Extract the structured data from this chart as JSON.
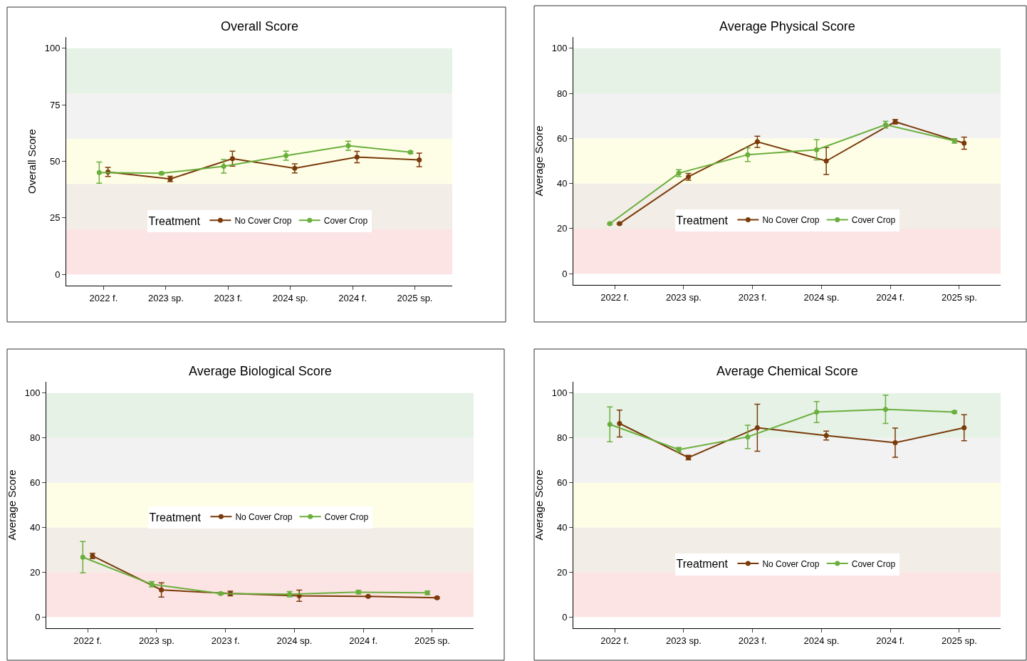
{
  "chart_data": [
    {
      "type": "line",
      "title": "Overall Score",
      "ylabel": "Overall Score",
      "categories": [
        "2022 f.",
        "2023 sp.",
        "2023 f.",
        "2024 sp.",
        "2024 f.",
        "2025 sp."
      ],
      "ylim": [
        -5,
        105
      ],
      "yticks": [
        0,
        25,
        50,
        75,
        100
      ],
      "grid": false,
      "marker": "circle",
      "legend": "bottom",
      "legend_title": "Treatment",
      "series": [
        {
          "name": "No Cover Crop",
          "color": "#7a3a0a",
          "values": [
            45.3,
            42.2,
            51.2,
            46.9,
            51.9,
            50.6
          ],
          "errors": [
            2,
            1.2,
            3.3,
            2,
            2.5,
            3
          ]
        },
        {
          "name": "Cover Crop",
          "color": "#6aaf3d",
          "values": [
            45,
            44.7,
            47.8,
            52.5,
            56.9,
            54
          ],
          "errors": [
            4.7,
            0.5,
            3,
            2,
            2,
            0.5
          ]
        }
      ],
      "bands": [
        {
          "axis": "y",
          "from": 0,
          "to": 20,
          "color": "#fde4e4"
        },
        {
          "axis": "y",
          "from": 20,
          "to": 40,
          "color": "#f2ede6"
        },
        {
          "axis": "y",
          "from": 40,
          "to": 60,
          "color": "#fefee6"
        },
        {
          "axis": "y",
          "from": 60,
          "to": 80,
          "color": "#f2f2f2"
        },
        {
          "axis": "y",
          "from": 80,
          "to": 100,
          "color": "#e6f2e6"
        }
      ]
    },
    {
      "type": "line",
      "title": "Average Physical Score",
      "ylabel": "Average Score",
      "categories": [
        "2022 f.",
        "2023 sp.",
        "2023 f.",
        "2024 sp.",
        "2024 f.",
        "2025 sp."
      ],
      "ylim": [
        -5,
        105
      ],
      "yticks": [
        0,
        20,
        40,
        60,
        80,
        100
      ],
      "grid": false,
      "marker": "circle",
      "legend": "bottom",
      "legend_title": "Treatment",
      "series": [
        {
          "name": "No Cover Crop",
          "color": "#7a3a0a",
          "values": [
            22.2,
            43,
            58.5,
            50,
            67.4,
            57.9
          ],
          "errors": [
            0.3,
            1.5,
            2.5,
            6,
            1,
            2.7
          ]
        },
        {
          "name": "Cover Crop",
          "color": "#6aaf3d",
          "values": [
            22.2,
            44.6,
            52.8,
            55,
            66.1,
            58.9
          ],
          "errors": [
            0.3,
            1.5,
            3,
            4.5,
            1.5,
            1
          ]
        }
      ],
      "bands": [
        {
          "axis": "y",
          "from": 0,
          "to": 20,
          "color": "#fde4e4"
        },
        {
          "axis": "y",
          "from": 20,
          "to": 40,
          "color": "#f2ede6"
        },
        {
          "axis": "y",
          "from": 40,
          "to": 60,
          "color": "#fefee6"
        },
        {
          "axis": "y",
          "from": 60,
          "to": 80,
          "color": "#f2f2f2"
        },
        {
          "axis": "y",
          "from": 80,
          "to": 100,
          "color": "#e6f2e6"
        }
      ]
    },
    {
      "type": "line",
      "title": "Average Biological Score",
      "ylabel": "Average Score",
      "categories": [
        "2022 f.",
        "2023 sp.",
        "2023 f.",
        "2024 sp.",
        "2024 f.",
        "2025 sp."
      ],
      "ylim": [
        -5,
        105
      ],
      "yticks": [
        0,
        20,
        40,
        60,
        80,
        100
      ],
      "grid": false,
      "marker": "circle",
      "legend": "center",
      "legend_title": "Treatment",
      "series": [
        {
          "name": "No Cover Crop",
          "color": "#7a3a0a",
          "values": [
            27.3,
            12.1,
            10.5,
            9.5,
            9.2,
            8.6
          ],
          "errors": [
            1.2,
            3.2,
            1,
            2.5,
            0.3,
            0.4
          ]
        },
        {
          "name": "Cover Crop",
          "color": "#6aaf3d",
          "values": [
            26.7,
            14.6,
            10.5,
            10.2,
            11.1,
            10.8
          ],
          "errors": [
            7,
            1.2,
            0.5,
            1.2,
            0.8,
            0.8
          ]
        }
      ],
      "bands": [
        {
          "axis": "y",
          "from": 0,
          "to": 20,
          "color": "#fde4e4"
        },
        {
          "axis": "y",
          "from": 20,
          "to": 40,
          "color": "#f2ede6"
        },
        {
          "axis": "y",
          "from": 40,
          "to": 60,
          "color": "#fefee6"
        },
        {
          "axis": "y",
          "from": 60,
          "to": 80,
          "color": "#f2f2f2"
        },
        {
          "axis": "y",
          "from": 80,
          "to": 100,
          "color": "#e6f2e6"
        }
      ]
    },
    {
      "type": "line",
      "title": "Average Chemical Score",
      "ylabel": "Average Score",
      "categories": [
        "2022 f.",
        "2023 sp.",
        "2023 f.",
        "2024 sp.",
        "2024 f.",
        "2025 sp."
      ],
      "ylim": [
        -5,
        105
      ],
      "yticks": [
        0,
        20,
        40,
        60,
        80,
        100
      ],
      "grid": false,
      "marker": "circle",
      "legend": "bottom",
      "legend_title": "Treatment",
      "series": [
        {
          "name": "No Cover Crop",
          "color": "#7a3a0a",
          "values": [
            86.4,
            71.2,
            84.5,
            81,
            77.8,
            84.5
          ],
          "errors": [
            6,
            1,
            10.5,
            2,
            6.5,
            5.8
          ]
        },
        {
          "name": "Cover Crop",
          "color": "#6aaf3d",
          "values": [
            86,
            74.7,
            80.4,
            91.5,
            92.7,
            91.5
          ],
          "errors": [
            7.8,
            1,
            5.2,
            4.7,
            6.3,
            0.5
          ]
        }
      ],
      "bands": [
        {
          "axis": "y",
          "from": 0,
          "to": 20,
          "color": "#fde4e4"
        },
        {
          "axis": "y",
          "from": 20,
          "to": 40,
          "color": "#f2ede6"
        },
        {
          "axis": "y",
          "from": 40,
          "to": 60,
          "color": "#fefee6"
        },
        {
          "axis": "y",
          "from": 60,
          "to": 80,
          "color": "#f2f2f2"
        },
        {
          "axis": "y",
          "from": 80,
          "to": 100,
          "color": "#e6f2e6"
        }
      ]
    }
  ]
}
